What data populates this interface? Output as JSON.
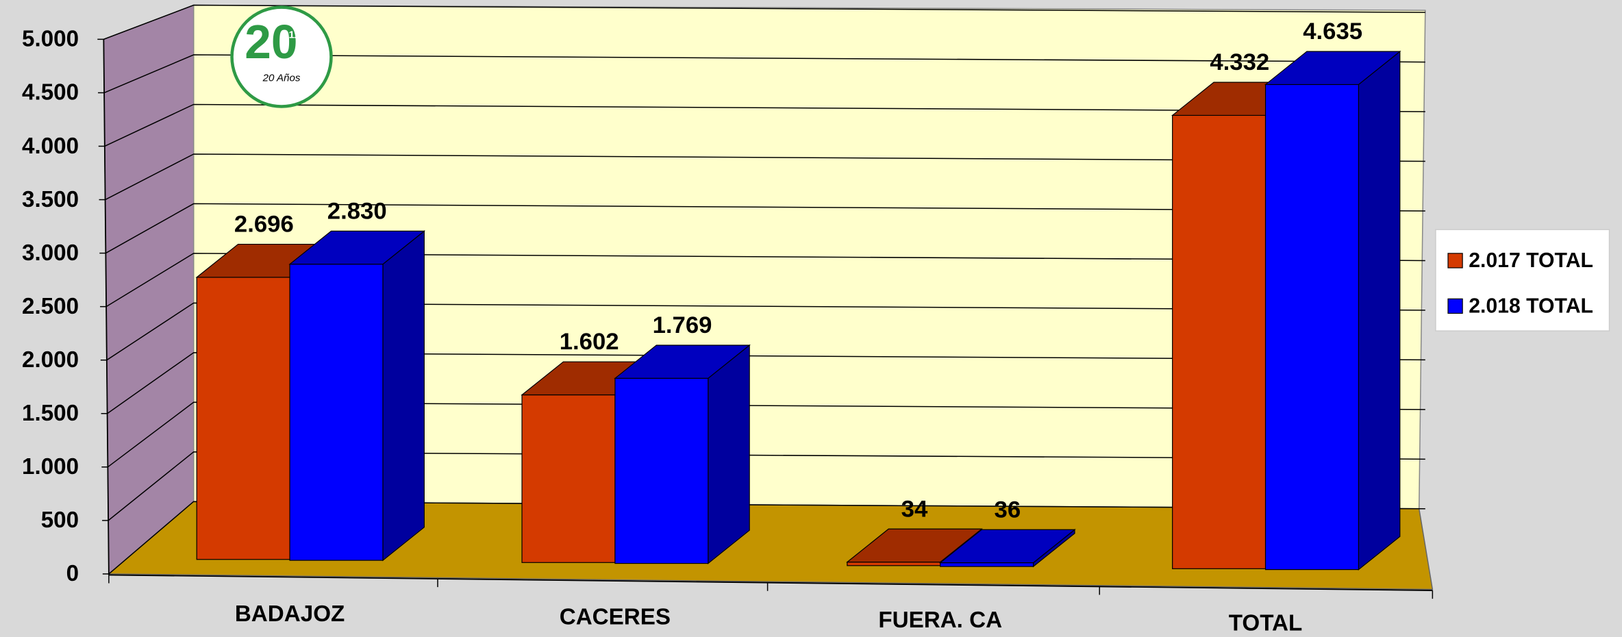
{
  "chart_data": {
    "type": "bar3d",
    "categories": [
      "BADAJOZ",
      "CACERES",
      "FUERA. CA",
      "TOTAL"
    ],
    "series": [
      {
        "name": "2.017 TOTAL",
        "color": "#d43a00",
        "values": [
          2696,
          1602,
          34,
          4332
        ],
        "value_labels": [
          "2.696",
          "1.602",
          "34",
          "4.332"
        ]
      },
      {
        "name": "2.018 TOTAL",
        "color": "#0000ff",
        "values": [
          2830,
          1769,
          36,
          4635
        ],
        "value_labels": [
          "2.830",
          "1.769",
          "36",
          "4.635"
        ]
      }
    ],
    "ylim": [
      0,
      5000
    ],
    "yticks": [
      0,
      500,
      {
        "value": 1000,
        "label": "1.000"
      },
      {
        "value": 1500,
        "label": "1.500"
      },
      {
        "value": 2000,
        "label": "2.000"
      },
      {
        "value": 2500,
        "label": "2.500"
      },
      {
        "value": 3000,
        "label": "3.000"
      },
      {
        "value": 3500,
        "label": "3.500"
      },
      {
        "value": 4000,
        "label": "4.000"
      },
      {
        "value": 4500,
        "label": "4.500"
      },
      {
        "value": 5000,
        "label": "5.000"
      }
    ],
    "grid": true,
    "legend": "right",
    "logo": {
      "number": "20",
      "badge": "112",
      "caption": "20 Años"
    }
  }
}
